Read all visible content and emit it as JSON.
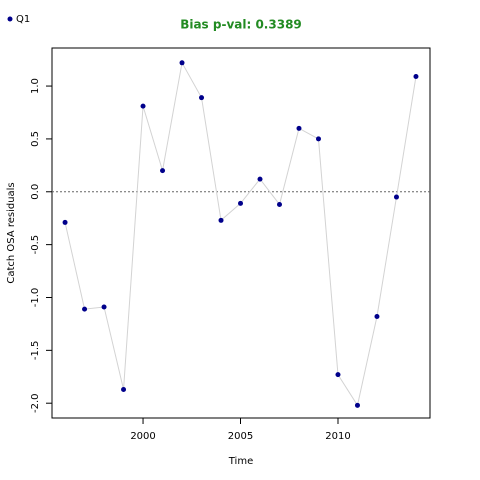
{
  "chart_data": {
    "type": "line",
    "title": "Bias p-val: 0.3389",
    "title_color": "#228b22",
    "x_label": "Time",
    "y_label": "Catch OSA residuals",
    "x": [
      1996,
      1997,
      1998,
      1999,
      2000,
      2001,
      2002,
      2003,
      2004,
      2005,
      2006,
      2007,
      2008,
      2009,
      2010,
      2011,
      2012,
      2013,
      2014
    ],
    "series": [
      {
        "name": "Q1",
        "color": "#00008b",
        "line_color": "#d3d3d3",
        "values": [
          -0.29,
          -1.11,
          -1.09,
          -1.87,
          0.81,
          0.2,
          1.22,
          0.89,
          -0.27,
          -0.11,
          0.12,
          -0.12,
          0.6,
          0.5,
          -1.73,
          -2.02,
          -1.18,
          -0.05,
          1.09
        ]
      }
    ],
    "xlim": [
      1995.33,
      2014.72
    ],
    "xticks": [
      2000,
      2005,
      2010
    ],
    "ylim": [
      -2.14,
      1.36
    ],
    "yticks": [
      {
        "value": -2,
        "label": "-2.0"
      },
      -1.5,
      {
        "value": -1,
        "label": "-1.0"
      },
      -0.5,
      {
        "value": 0,
        "label": "0.0"
      },
      0.5,
      {
        "value": 1,
        "label": "1.0"
      }
    ],
    "hline": 0,
    "legend": "top-left"
  }
}
